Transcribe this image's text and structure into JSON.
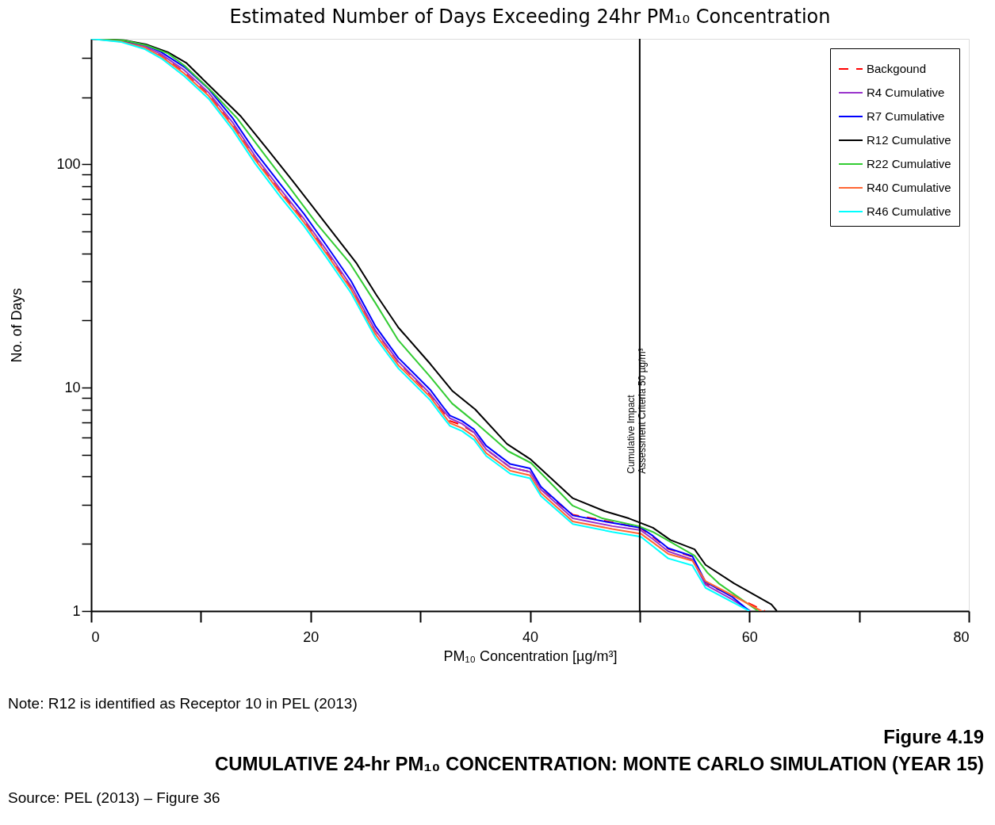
{
  "chart_data": {
    "type": "line",
    "title": "Estimated Number of Days Exceeding 24hr PM₁₀ Concentration",
    "xlabel": "PM₁₀ Concentration [µg/m³]",
    "ylabel": "No. of Days",
    "log": "y",
    "xlim": [
      0,
      80
    ],
    "ylim": [
      1,
      365
    ],
    "xticks": [
      0,
      {
        "value": 10,
        "label": null
      },
      20,
      {
        "value": 30,
        "label": null
      },
      40,
      {
        "value": 50,
        "label": null
      },
      60,
      {
        "value": 70,
        "label": null
      },
      80
    ],
    "yticks": [
      1,
      {
        "value": 2,
        "label": null
      },
      {
        "value": 3,
        "label": null
      },
      {
        "value": 4,
        "label": null
      },
      {
        "value": 5,
        "label": null
      },
      {
        "value": 6,
        "label": null
      },
      {
        "value": 7,
        "label": null
      },
      {
        "value": 8,
        "label": null
      },
      {
        "value": 9,
        "label": null
      },
      10,
      {
        "value": 20,
        "label": null
      },
      {
        "value": 30,
        "label": null
      },
      {
        "value": 40,
        "label": null
      },
      {
        "value": 50,
        "label": null
      },
      {
        "value": 60,
        "label": null
      },
      {
        "value": 70,
        "label": null
      },
      {
        "value": 80,
        "label": null
      },
      {
        "value": 90,
        "label": null
      },
      100,
      {
        "value": 200,
        "label": null
      },
      {
        "value": 300,
        "label": null
      }
    ],
    "grid": false,
    "legend": "top right",
    "marker": "none",
    "series": [
      {
        "name": "Backgound",
        "color": "#ff0000",
        "line_style": "dashed",
        "x": [
          0,
          2.75,
          4.9,
          6.4,
          8.5,
          10.7,
          12.9,
          15,
          17.2,
          19.4,
          21.5,
          23.7,
          25.9,
          28,
          30.9,
          32,
          32.7,
          33.8,
          34.9,
          36,
          38.2,
          40,
          41,
          43.9,
          47.5,
          50.1,
          51.2,
          52.6,
          54.8,
          56,
          58.4,
          61.4
        ],
        "values": [
          365,
          357,
          336,
          306,
          258,
          205,
          150,
          105,
          76,
          56,
          40,
          28,
          18,
          13,
          9.3,
          7.9,
          7.1,
          6.8,
          6.3,
          5.3,
          4.4,
          4.2,
          3.5,
          2.7,
          2.5,
          2.35,
          2.15,
          1.9,
          1.75,
          1.32,
          1.18,
          1
        ]
      },
      {
        "name": "R4 Cumulative",
        "color": "#9933cc",
        "x": [
          0,
          2.75,
          4.9,
          6.4,
          8.5,
          10.7,
          12.9,
          15,
          17.2,
          19.4,
          21.5,
          23.7,
          25.9,
          28,
          30.9,
          32,
          32.7,
          33.8,
          34.9,
          36,
          38.2,
          40,
          41,
          43.9,
          47.5,
          50.1,
          51.2,
          52.6,
          54.8,
          56,
          58.4,
          60.1
        ],
        "values": [
          365,
          357,
          338,
          311,
          264,
          210,
          154,
          108,
          78,
          57,
          41,
          28.5,
          18.1,
          13.1,
          9.4,
          8,
          7.3,
          6.9,
          6.3,
          5.3,
          4.4,
          4.2,
          3.5,
          2.6,
          2.4,
          2.3,
          2.1,
          1.85,
          1.7,
          1.31,
          1.13,
          1
        ]
      },
      {
        "name": "R7 Cumulative",
        "color": "#0000ff",
        "x": [
          0,
          2.75,
          4.9,
          6.4,
          8.5,
          10.7,
          12.9,
          15,
          17.2,
          19.4,
          21.5,
          23.7,
          25.9,
          28,
          30.9,
          32,
          32.7,
          33.8,
          34.9,
          36,
          38.2,
          40,
          41,
          43.9,
          47.5,
          50.1,
          51.2,
          52.6,
          54.8,
          56,
          58.4,
          60
        ],
        "values": [
          365,
          358,
          343,
          318,
          273,
          218,
          161,
          113,
          82,
          60,
          43,
          30,
          18.9,
          13.6,
          9.8,
          8.3,
          7.5,
          7.1,
          6.5,
          5.5,
          4.55,
          4.35,
          3.6,
          2.68,
          2.48,
          2.36,
          2.17,
          1.91,
          1.76,
          1.35,
          1.16,
          1
        ]
      },
      {
        "name": "R12 Cumulative",
        "color": "#000000",
        "x": [
          0,
          3,
          5,
          7,
          8.7,
          11.2,
          13.6,
          16,
          18.4,
          21.3,
          24.2,
          26,
          28,
          30.9,
          32.9,
          35,
          37.9,
          40,
          43.9,
          46.8,
          49,
          49.9,
          51.2,
          52.8,
          55,
          56,
          58.6,
          62,
          62.5
        ],
        "values": [
          365,
          360,
          345,
          318,
          284,
          215,
          165,
          118,
          84,
          55,
          36,
          26,
          18.6,
          12.8,
          9.7,
          8,
          5.6,
          4.8,
          3.2,
          2.8,
          2.6,
          2.5,
          2.36,
          2.08,
          1.89,
          1.61,
          1.33,
          1.07,
          1
        ]
      },
      {
        "name": "R22 Cumulative",
        "color": "#33cc33",
        "x": [
          0,
          3,
          5,
          7,
          8.5,
          11,
          13.3,
          15.6,
          17.9,
          20.6,
          23.6,
          25.9,
          28,
          30.9,
          32.9,
          35,
          38,
          40.1,
          43.9,
          46.6,
          49.9,
          51.2,
          55,
          56.2,
          57.2,
          60.8
        ],
        "values": [
          365,
          359,
          342,
          314,
          277,
          212,
          161,
          114,
          81,
          54,
          36,
          24,
          16.3,
          11.2,
          8.5,
          7,
          5.2,
          4.6,
          2.96,
          2.6,
          2.4,
          2.26,
          1.77,
          1.48,
          1.33,
          1
        ]
      },
      {
        "name": "R40 Cumulative",
        "color": "#ff6633",
        "x": [
          0,
          2.75,
          4.9,
          6.4,
          8.5,
          10.7,
          12.9,
          15,
          17.2,
          19.4,
          21.5,
          23.7,
          25.9,
          28,
          30.9,
          32,
          32.7,
          33.8,
          34.9,
          36,
          38.2,
          40,
          41,
          43.9,
          47.5,
          50.1,
          51.2,
          52.6,
          54.8,
          56,
          58.4,
          61.1
        ],
        "values": [
          365,
          355,
          333,
          304,
          255,
          203,
          148,
          104,
          75,
          55,
          39.5,
          27.5,
          17.4,
          12.6,
          9.1,
          7.7,
          6.95,
          6.6,
          6.05,
          5.1,
          4.25,
          4.05,
          3.38,
          2.52,
          2.33,
          2.22,
          2.03,
          1.8,
          1.68,
          1.36,
          1.18,
          1
        ]
      },
      {
        "name": "R46 Cumulative",
        "color": "#00ffff",
        "x": [
          0,
          2.75,
          4.9,
          6.4,
          8.5,
          10.7,
          12.9,
          15,
          17.2,
          19.4,
          21.5,
          23.7,
          25.9,
          28,
          30.9,
          32,
          32.7,
          33.8,
          34.9,
          36,
          38.2,
          40,
          41,
          43.9,
          47.5,
          50.1,
          51.2,
          52.6,
          54.8,
          56,
          58.4,
          60
        ],
        "values": [
          365,
          353,
          328,
          298,
          248,
          197,
          143,
          100,
          72,
          53,
          38,
          26.5,
          16.8,
          12.2,
          8.8,
          7.45,
          6.75,
          6.4,
          5.85,
          4.95,
          4.12,
          3.93,
          3.27,
          2.45,
          2.26,
          2.15,
          1.95,
          1.72,
          1.6,
          1.27,
          1.1,
          1
        ]
      }
    ],
    "ref_lines": [
      {
        "axis": "x",
        "value": 50,
        "label": "Cumulative Impact\nAssessment Criteria 50 µg/m³",
        "color": "#000000"
      }
    ],
    "annotations": [
      "Note: R12 is identified as Receptor 10 in PEL (2013)",
      "Figure 4.19",
      "CUMULATIVE 24-hr PM₁₀ CONCENTRATION: MONTE CARLO SIMULATION (YEAR 15)",
      "Source: PEL (2013) – Figure 36"
    ]
  }
}
